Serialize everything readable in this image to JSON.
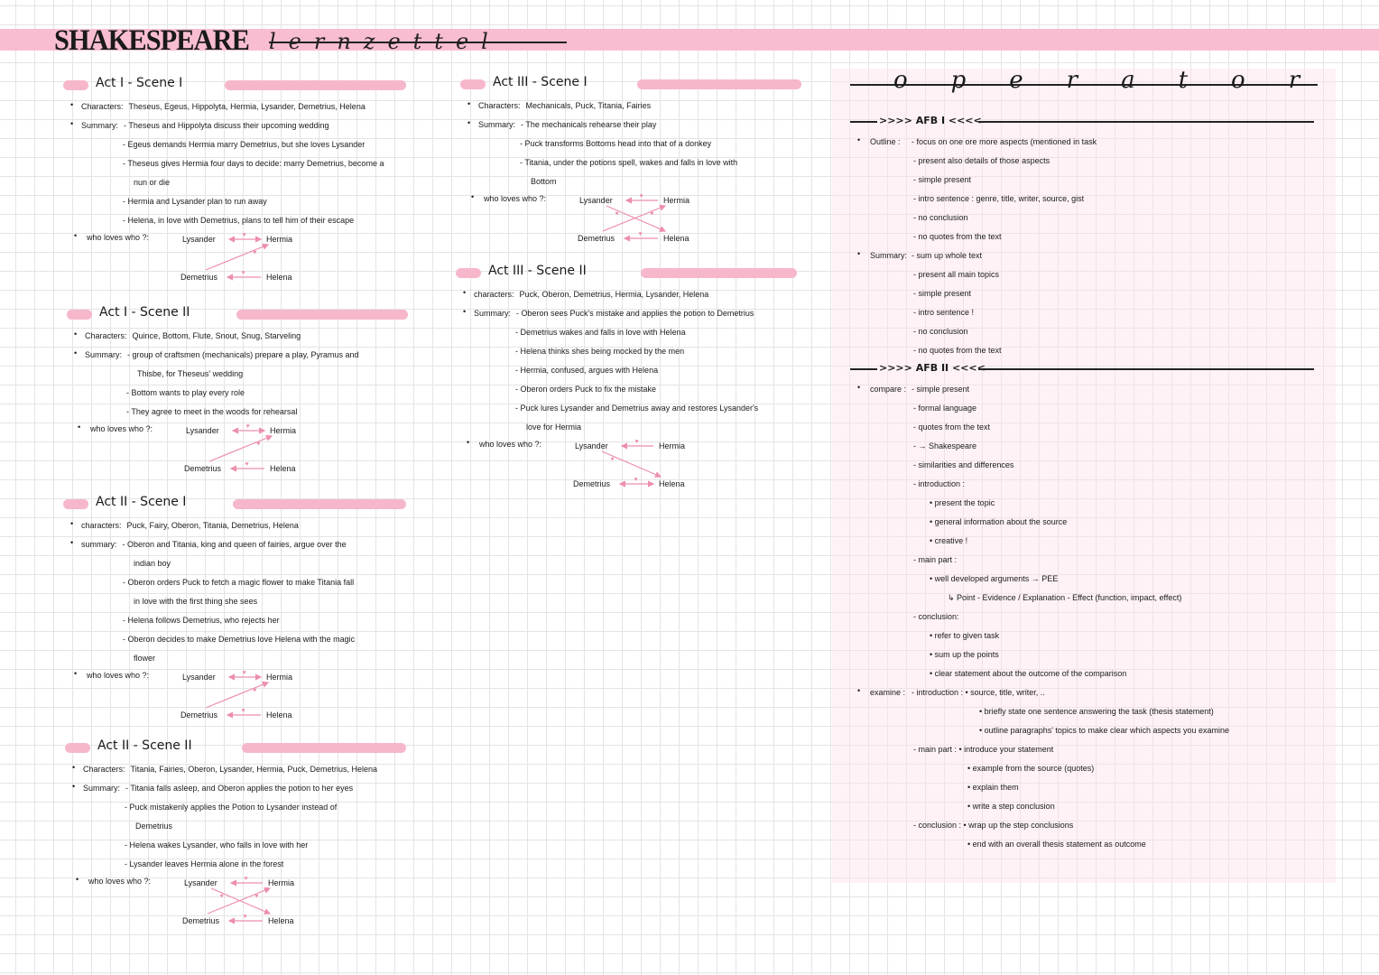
{
  "header": {
    "title": "SHAKESPEARE",
    "subtitle": "lernzettel",
    "band_color": "#f9bdd2"
  },
  "accent_color": "#f7b7cb",
  "arrow_color": "#ec8fab",
  "who_label": "who loves who ?:",
  "scenes": [
    {
      "title": "Act I - Scene I",
      "rows": [
        {
          "level": 0,
          "label": "Characters:",
          "text": "Theseus, Egeus, Hippolyta, Hermia, Lysander, Demetrius, Helena"
        },
        {
          "level": 0,
          "label": "Summary:",
          "text": "- Theseus and Hippolyta discuss their upcoming wedding"
        },
        {
          "level": 1,
          "text": "- Egeus demands Hermia marry Demetrius, but she loves Lysander"
        },
        {
          "level": 1,
          "text": "- Theseus gives Hermia four days to decide: marry Demetrius, become a"
        },
        {
          "level": 2,
          "text": "nun or die"
        },
        {
          "level": 1,
          "text": "- Hermia and Lysander plan to run away"
        },
        {
          "level": 1,
          "text": "- Helena, in love with Demetrius, plans to tell him of their escape"
        }
      ],
      "names": [
        "Lysander",
        "Hermia",
        "Demetrius",
        "Helena"
      ],
      "relations": [
        {
          "from": "Lysander",
          "to": "Hermia",
          "mutual": true
        },
        {
          "from": "Demetrius",
          "to": "Hermia"
        },
        {
          "from": "Helena",
          "to": "Demetrius"
        }
      ]
    },
    {
      "title": "Act I - Scene II",
      "rows": [
        {
          "level": 0,
          "label": "Characters:",
          "text": "Quince, Bottom, Flute, Snout, Snug, Starveling"
        },
        {
          "level": 0,
          "label": "Summary:",
          "text": "- group of craftsmen (mechanicals) prepare a play, Pyramus and"
        },
        {
          "level": 2,
          "text": "Thisbe, for Theseus' wedding"
        },
        {
          "level": 1,
          "text": "- Bottom wants to play every role"
        },
        {
          "level": 1,
          "text": "- They agree to meet in the woods for rehearsal"
        }
      ],
      "names": [
        "Lysander",
        "Hermia",
        "Demetrius",
        "Helena"
      ],
      "relations": [
        {
          "from": "Lysander",
          "to": "Hermia",
          "mutual": true
        },
        {
          "from": "Demetrius",
          "to": "Hermia"
        },
        {
          "from": "Helena",
          "to": "Demetrius"
        }
      ]
    },
    {
      "title": "Act II - Scene I",
      "rows": [
        {
          "level": 0,
          "label": "characters:",
          "text": "Puck, Fairy, Oberon, Titania, Demetrius, Helena"
        },
        {
          "level": 0,
          "label": "summary:",
          "text": "- Oberon and Titania, king and queen of fairies, argue over the"
        },
        {
          "level": 2,
          "text": "indian boy"
        },
        {
          "level": 1,
          "text": "- Oberon orders Puck to fetch a magic flower to make Titania fall"
        },
        {
          "level": 2,
          "text": "in love with the first thing she sees"
        },
        {
          "level": 1,
          "text": "- Helena follows Demetrius, who rejects her"
        },
        {
          "level": 1,
          "text": "- Oberon decides to make Demetrius love Helena with the magic"
        },
        {
          "level": 2,
          "text": "flower"
        }
      ],
      "names": [
        "Lysander",
        "Hermia",
        "Demetrius",
        "Helena"
      ],
      "relations": [
        {
          "from": "Lysander",
          "to": "Hermia",
          "mutual": true
        },
        {
          "from": "Demetrius",
          "to": "Hermia"
        },
        {
          "from": "Helena",
          "to": "Demetrius"
        }
      ]
    },
    {
      "title": "Act II - Scene II",
      "rows": [
        {
          "level": 0,
          "label": "Characters:",
          "text": "Titania, Fairies, Oberon, Lysander, Hermia, Puck, Demetrius, Helena"
        },
        {
          "level": 0,
          "label": "Summary:",
          "text": "- Titania falls asleep, and Oberon applies the potion to her eyes"
        },
        {
          "level": 1,
          "text": "- Puck mistakenly applies the Potion to Lysander instead of"
        },
        {
          "level": 2,
          "text": "Demetrius"
        },
        {
          "level": 1,
          "text": "- Helena wakes Lysander, who falls in love with her"
        },
        {
          "level": 1,
          "text": "- Lysander leaves Hermia alone in the forest"
        }
      ],
      "names": [
        "Lysander",
        "Hermia",
        "Demetrius",
        "Helena"
      ],
      "relations": [
        {
          "from": "Hermia",
          "to": "Lysander"
        },
        {
          "from": "Lysander",
          "to": "Helena"
        },
        {
          "from": "Demetrius",
          "to": "Hermia"
        },
        {
          "from": "Helena",
          "to": "Demetrius"
        }
      ]
    },
    {
      "title": "Act III - Scene I",
      "rows": [
        {
          "level": 0,
          "label": "Characters:",
          "text": "Mechanicals, Puck, Titania, Fairies"
        },
        {
          "level": 0,
          "label": "Summary:",
          "text": "- The mechanicals rehearse their play"
        },
        {
          "level": 1,
          "text": "- Puck transforms Bottoms head into that of a donkey"
        },
        {
          "level": 1,
          "text": "- Titania, under the potions spell, wakes and falls in love with"
        },
        {
          "level": 2,
          "text": "Bottom"
        }
      ],
      "names": [
        "Lysander",
        "Hermia",
        "Demetrius",
        "Helena"
      ],
      "relations": [
        {
          "from": "Hermia",
          "to": "Lysander"
        },
        {
          "from": "Lysander",
          "to": "Helena"
        },
        {
          "from": "Demetrius",
          "to": "Hermia"
        },
        {
          "from": "Helena",
          "to": "Demetrius"
        }
      ]
    },
    {
      "title": "Act III - Scene II",
      "rows": [
        {
          "level": 0,
          "label": "characters:",
          "text": "Puck, Oberon, Demetrius, Hermia, Lysander, Helena"
        },
        {
          "level": 0,
          "label": "Summary:",
          "text": "- Oberon sees Puck's mistake and applies the potion to Demetrius"
        },
        {
          "level": 1,
          "text": "- Demetrius wakes and falls in love with Helena"
        },
        {
          "level": 1,
          "text": "- Helena thinks shes being mocked by the men"
        },
        {
          "level": 1,
          "text": "- Hermia, confused, argues with Helena"
        },
        {
          "level": 1,
          "text": "- Oberon orders Puck to fix the mistake"
        },
        {
          "level": 1,
          "text": "- Puck lures Lysander and Demetrius away and restores Lysander's"
        },
        {
          "level": 2,
          "text": "love for Hermia"
        }
      ],
      "names": [
        "Lysander",
        "Hermia",
        "Demetrius",
        "Helena"
      ],
      "relations": [
        {
          "from": "Hermia",
          "to": "Lysander"
        },
        {
          "from": "Lysander",
          "to": "Helena"
        },
        {
          "from": "Demetrius",
          "to": "Helena",
          "mutual": true
        }
      ]
    }
  ],
  "operator": {
    "title": "operator",
    "sections": [
      {
        "title": ">>>> AFB I <<<<",
        "rows": [
          {
            "level": 0,
            "label": "Outline :",
            "text": "- focus on one ore more aspects (mentioned in task"
          },
          {
            "level": 1,
            "text": "- present also details of those aspects"
          },
          {
            "level": 1,
            "text": "- simple present"
          },
          {
            "level": 1,
            "text": "- intro sentence : genre, title, writer, source, gist"
          },
          {
            "level": 1,
            "text": "- no conclusion"
          },
          {
            "level": 1,
            "text": "- no quotes from the text"
          },
          {
            "level": 0,
            "label": "Summary:",
            "text": "- sum up whole text"
          },
          {
            "level": 1,
            "text": "- present all main topics"
          },
          {
            "level": 1,
            "text": "- simple present"
          },
          {
            "level": 1,
            "text": "- intro sentence !"
          },
          {
            "level": 1,
            "text": "- no conclusion"
          },
          {
            "level": 1,
            "text": "- no quotes from the text"
          }
        ]
      },
      {
        "title": ">>>> AFB II <<<<",
        "rows": [
          {
            "level": 0,
            "label": "compare :",
            "text": "- simple present"
          },
          {
            "level": 1,
            "text": "- formal language"
          },
          {
            "level": 1,
            "text": "- quotes from the text"
          },
          {
            "level": 1,
            "text": "- → Shakespeare"
          },
          {
            "level": 1,
            "text": "- similarities and differences"
          },
          {
            "level": 1,
            "text": "- introduction :"
          },
          {
            "level": 2,
            "text": "• present the topic"
          },
          {
            "level": 2,
            "text": "• general information about the source"
          },
          {
            "level": 2,
            "text": "• creative !"
          },
          {
            "level": 1,
            "text": "- main part :"
          },
          {
            "level": 2,
            "text": "• well developed arguments → PEE"
          },
          {
            "level": 3,
            "text": "↳ Point - Evidence / Explanation - Effect (function, impact, effect)"
          },
          {
            "level": 1,
            "text": "- conclusion:"
          },
          {
            "level": 2,
            "text": "• refer to given task"
          },
          {
            "level": 2,
            "text": "• sum up the points"
          },
          {
            "level": 2,
            "text": "• clear statement about the outcome of the comparison"
          },
          {
            "level": 0,
            "label": "examine :",
            "text": "- introduction : • source, title, writer, .."
          },
          {
            "level": 5,
            "text": "• briefly state one sentence answering the task (thesis statement)"
          },
          {
            "level": 5,
            "text": "• outline paragraphs' topics to make clear which aspects you examine"
          },
          {
            "level": 1,
            "text": "- main part : • introduce your statement"
          },
          {
            "level": 4,
            "text": "• example from the source (quotes)"
          },
          {
            "level": 4,
            "text": "• explain them"
          },
          {
            "level": 4,
            "text": "• write a step conclusion"
          },
          {
            "level": 1,
            "text": "- conclusion : • wrap up the step conclusions"
          },
          {
            "level": 4,
            "text": "• end with an overall thesis statement as outcome"
          }
        ]
      }
    ]
  }
}
